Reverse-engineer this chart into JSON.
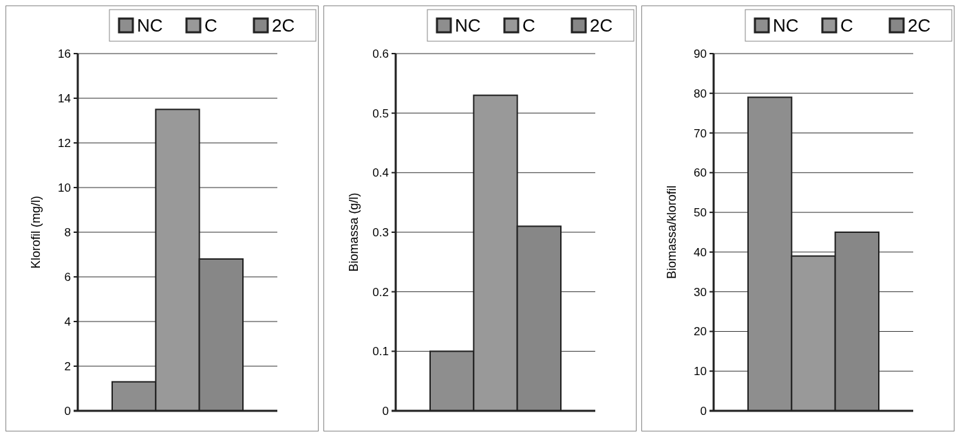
{
  "chart_data": [
    {
      "type": "bar",
      "ylabel": "Klorofil (mg/l)",
      "categories": [
        null
      ],
      "series": [
        {
          "name": "NC",
          "color": "#8e8e8e",
          "values": [
            1.3
          ]
        },
        {
          "name": "C",
          "color": "#999999",
          "values": [
            13.5
          ]
        },
        {
          "name": "2C",
          "color": "#878787",
          "values": [
            6.8
          ]
        }
      ],
      "ylim": [
        0,
        16
      ],
      "yticks": [
        0,
        2,
        4,
        6,
        8,
        10,
        12,
        14,
        16
      ],
      "grid": "y",
      "legend": "top right"
    },
    {
      "type": "bar",
      "ylabel": "Biomassa (g/l)",
      "categories": [
        null
      ],
      "series": [
        {
          "name": "NC",
          "color": "#8e8e8e",
          "values": [
            0.1
          ]
        },
        {
          "name": "C",
          "color": "#999999",
          "values": [
            0.53
          ]
        },
        {
          "name": "2C",
          "color": "#878787",
          "values": [
            0.31
          ]
        }
      ],
      "ylim": [
        0,
        0.6
      ],
      "yticks": [
        0,
        0.1,
        0.2,
        0.3,
        0.4,
        0.5,
        0.6
      ],
      "grid": "y",
      "legend": "top right"
    },
    {
      "type": "bar",
      "ylabel": "Biomassa/klorofil",
      "categories": [
        null
      ],
      "series": [
        {
          "name": "NC",
          "color": "#8e8e8e",
          "values": [
            79
          ]
        },
        {
          "name": "C",
          "color": "#999999",
          "values": [
            39
          ]
        },
        {
          "name": "2C",
          "color": "#878787",
          "values": [
            45
          ]
        }
      ],
      "ylim": [
        0,
        90
      ],
      "yticks": [
        0,
        10,
        20,
        30,
        40,
        50,
        60,
        70,
        80,
        90
      ],
      "grid": "y",
      "legend": "top right"
    }
  ]
}
